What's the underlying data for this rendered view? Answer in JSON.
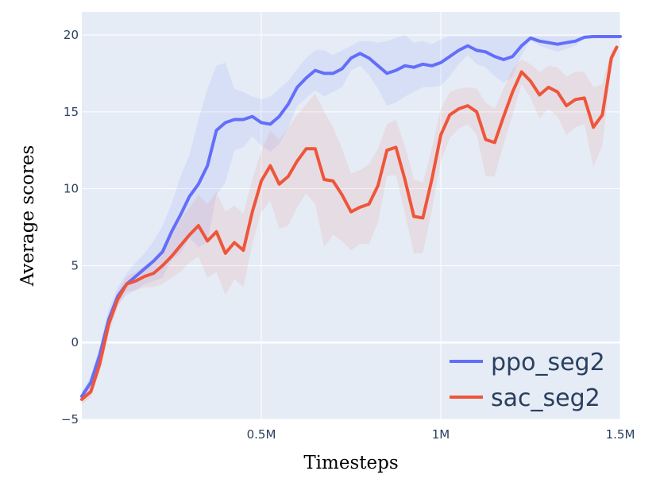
{
  "chart_data": {
    "type": "line",
    "title": "",
    "xlabel": "Timesteps",
    "ylabel": "Average scores",
    "xlim": [
      0,
      1500000
    ],
    "ylim": [
      -5,
      21.5
    ],
    "x_ticks": [
      {
        "value": 500000,
        "label": "0.5M"
      },
      {
        "value": 1000000,
        "label": "1M"
      },
      {
        "value": 1500000,
        "label": "1.5M"
      }
    ],
    "y_ticks": [
      {
        "value": -5,
        "label": "−5"
      },
      {
        "value": 0,
        "label": "0"
      },
      {
        "value": 5,
        "label": "5"
      },
      {
        "value": 10,
        "label": "10"
      },
      {
        "value": 15,
        "label": "15"
      },
      {
        "value": 20,
        "label": "20"
      }
    ],
    "grid": true,
    "legend_position": "bottom-right",
    "background": "#e5ecf6",
    "series": [
      {
        "name": "ppo_seg2",
        "color": "#636efa",
        "x": [
          0,
          25000,
          50000,
          75000,
          100000,
          125000,
          150000,
          175000,
          200000,
          225000,
          250000,
          275000,
          300000,
          325000,
          350000,
          375000,
          400000,
          425000,
          450000,
          475000,
          500000,
          525000,
          550000,
          575000,
          600000,
          625000,
          650000,
          675000,
          700000,
          725000,
          750000,
          775000,
          800000,
          825000,
          850000,
          875000,
          900000,
          925000,
          950000,
          975000,
          1000000,
          1025000,
          1050000,
          1075000,
          1100000,
          1125000,
          1150000,
          1175000,
          1200000,
          1225000,
          1250000,
          1275000,
          1300000,
          1325000,
          1350000,
          1375000,
          1400000,
          1425000,
          1450000,
          1475000,
          1500000
        ],
        "values": [
          -3.5,
          -2.6,
          -0.8,
          1.5,
          3.0,
          3.8,
          4.3,
          4.8,
          5.3,
          5.9,
          7.2,
          8.3,
          9.5,
          10.3,
          11.5,
          13.8,
          14.3,
          14.5,
          14.5,
          14.7,
          14.3,
          14.2,
          14.7,
          15.5,
          16.6,
          17.2,
          17.7,
          17.5,
          17.5,
          17.8,
          18.5,
          18.8,
          18.5,
          18.0,
          17.5,
          17.7,
          18.0,
          17.9,
          18.1,
          18.0,
          18.2,
          18.6,
          19.0,
          19.3,
          19.0,
          18.9,
          18.6,
          18.4,
          18.6,
          19.3,
          19.8,
          19.6,
          19.5,
          19.4,
          19.5,
          19.6,
          19.85,
          19.9,
          19.9,
          19.9,
          19.9
        ],
        "band_upper": [
          -3.2,
          -2.2,
          -0.2,
          2.2,
          3.6,
          4.5,
          5.2,
          5.8,
          6.6,
          7.6,
          9.0,
          10.8,
          12.2,
          14.5,
          16.5,
          18.0,
          18.2,
          16.5,
          16.3,
          16.0,
          15.8,
          16.0,
          16.5,
          17.0,
          17.8,
          18.5,
          19.0,
          19.0,
          18.7,
          19.0,
          19.3,
          19.6,
          19.6,
          19.5,
          19.6,
          19.8,
          20.0,
          19.5,
          19.6,
          19.4,
          19.7,
          19.9,
          19.9,
          19.9,
          19.9,
          19.9,
          19.9,
          19.9,
          19.9,
          19.9,
          19.9,
          19.9,
          19.9,
          19.9,
          19.9,
          19.9,
          19.9,
          19.9,
          19.9,
          19.9,
          19.9
        ],
        "band_lower": [
          -3.8,
          -3.0,
          -1.4,
          0.8,
          2.5,
          3.1,
          3.4,
          3.8,
          4.0,
          4.2,
          5.4,
          5.8,
          6.8,
          6.2,
          6.5,
          9.6,
          10.4,
          12.5,
          12.7,
          13.4,
          12.8,
          12.4,
          12.9,
          14.0,
          15.4,
          15.9,
          16.4,
          16.0,
          16.3,
          16.6,
          17.7,
          18.0,
          17.4,
          16.5,
          15.4,
          15.6,
          16.0,
          16.3,
          16.6,
          16.6,
          16.7,
          17.3,
          18.1,
          18.7,
          18.1,
          17.9,
          17.3,
          16.9,
          17.3,
          18.7,
          19.7,
          19.3,
          19.1,
          18.9,
          19.1,
          19.3,
          19.8,
          19.9,
          19.9,
          19.9,
          19.9
        ]
      },
      {
        "name": "sac_seg2",
        "color": "#ef553b",
        "x": [
          0,
          25000,
          50000,
          75000,
          100000,
          125000,
          150000,
          175000,
          200000,
          225000,
          250000,
          275000,
          300000,
          325000,
          350000,
          375000,
          400000,
          425000,
          450000,
          475000,
          500000,
          525000,
          550000,
          575000,
          600000,
          625000,
          650000,
          675000,
          700000,
          725000,
          750000,
          775000,
          800000,
          825000,
          850000,
          875000,
          900000,
          925000,
          950000,
          975000,
          1000000,
          1025000,
          1050000,
          1075000,
          1100000,
          1125000,
          1150000,
          1175000,
          1200000,
          1225000,
          1250000,
          1275000,
          1300000,
          1325000,
          1350000,
          1375000,
          1400000,
          1425000,
          1450000,
          1475000,
          1490000
        ],
        "values": [
          -3.7,
          -3.2,
          -1.4,
          1.2,
          2.8,
          3.8,
          4.0,
          4.3,
          4.5,
          5.0,
          5.6,
          6.3,
          7.0,
          7.6,
          6.6,
          7.2,
          5.8,
          6.5,
          6.0,
          8.5,
          10.5,
          11.5,
          10.3,
          10.8,
          11.8,
          12.6,
          12.6,
          10.6,
          10.5,
          9.6,
          8.5,
          8.8,
          9.0,
          10.2,
          12.5,
          12.7,
          10.6,
          8.2,
          8.1,
          10.6,
          13.5,
          14.8,
          15.2,
          15.4,
          15.0,
          13.2,
          13.0,
          14.7,
          16.3,
          17.6,
          17.0,
          16.1,
          16.6,
          16.3,
          15.4,
          15.8,
          15.9,
          14.0,
          14.8,
          18.5,
          19.2
        ],
        "band_upper": [
          -3.4,
          -2.8,
          -0.9,
          1.8,
          3.3,
          4.3,
          4.6,
          5.0,
          5.4,
          6.2,
          7.0,
          8.0,
          8.8,
          9.6,
          9.0,
          9.8,
          8.5,
          8.9,
          8.4,
          10.6,
          12.5,
          13.8,
          13.2,
          14.0,
          14.8,
          15.5,
          16.2,
          15.0,
          14.0,
          12.6,
          11.0,
          11.2,
          11.6,
          12.6,
          14.2,
          14.5,
          12.8,
          10.6,
          10.4,
          12.6,
          15.2,
          16.3,
          16.5,
          16.6,
          16.5,
          15.6,
          15.2,
          16.5,
          17.8,
          18.4,
          18.1,
          17.6,
          18.0,
          17.9,
          17.3,
          17.6,
          17.6,
          16.6,
          16.8,
          19.0,
          19.4
        ],
        "band_lower": [
          -4.0,
          -3.6,
          -1.9,
          0.6,
          2.3,
          3.3,
          3.4,
          3.6,
          3.6,
          3.8,
          4.2,
          4.6,
          5.2,
          5.6,
          4.2,
          4.6,
          3.1,
          4.1,
          3.6,
          6.4,
          8.5,
          9.2,
          7.4,
          7.6,
          8.8,
          9.7,
          9.0,
          6.2,
          7.0,
          6.6,
          6.0,
          6.4,
          6.4,
          7.8,
          10.8,
          10.9,
          8.4,
          5.8,
          5.8,
          8.6,
          11.8,
          13.3,
          13.9,
          14.2,
          13.5,
          10.8,
          10.8,
          12.9,
          14.8,
          16.8,
          15.9,
          14.6,
          15.2,
          14.7,
          13.5,
          14.0,
          14.2,
          11.4,
          12.8,
          18.0,
          19.0
        ]
      }
    ]
  }
}
